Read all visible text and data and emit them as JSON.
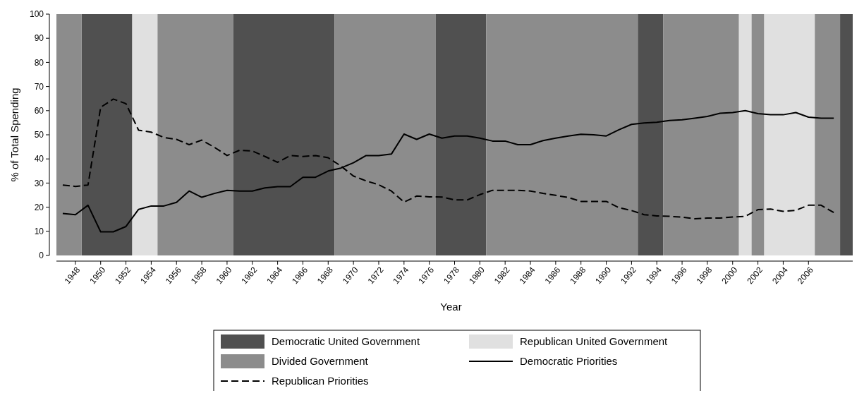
{
  "chart_data": {
    "type": "line",
    "xlabel": "Year",
    "ylabel": "% of Total Spending",
    "x": [
      1947,
      1948,
      1949,
      1950,
      1951,
      1952,
      1953,
      1954,
      1955,
      1956,
      1957,
      1958,
      1959,
      1960,
      1961,
      1962,
      1963,
      1964,
      1965,
      1966,
      1967,
      1968,
      1969,
      1970,
      1971,
      1972,
      1973,
      1974,
      1975,
      1976,
      1977,
      1978,
      1979,
      1980,
      1981,
      1982,
      1983,
      1984,
      1985,
      1986,
      1987,
      1988,
      1989,
      1990,
      1991,
      1992,
      1993,
      1994,
      1995,
      1996,
      1997,
      1998,
      1999,
      2000,
      2001,
      2002,
      2003,
      2004,
      2005,
      2006,
      2007,
      2008
    ],
    "series": [
      {
        "name": "Democratic Priorities",
        "color": "#000000",
        "line_style": "solid",
        "values": [
          17.4,
          16.9,
          20.8,
          9.8,
          9.8,
          12,
          19.1,
          20.5,
          20.5,
          22,
          26.7,
          24.1,
          25.7,
          27,
          26.7,
          26.7,
          28,
          28.5,
          28.5,
          32.4,
          32.4,
          35,
          36.2,
          38.4,
          41.4,
          41.4,
          42,
          50.3,
          48.1,
          50.3,
          48.6,
          49.5,
          49.5,
          48.6,
          47.4,
          47.4,
          45.9,
          45.9,
          47.6,
          48.6,
          49.5,
          50.2,
          50,
          49.5,
          52.1,
          54.3,
          54.9,
          55.2,
          55.9,
          56.2,
          56.9,
          57.6,
          58.9,
          59.2,
          60,
          58.8,
          58.3,
          58.3,
          59.2,
          57.3,
          56.9,
          56.9
        ]
      },
      {
        "name": "Republican Priorities",
        "color": "#000000",
        "line_style": "dashed",
        "values": [
          29.2,
          28.6,
          29.2,
          61.4,
          64.8,
          62.9,
          51.9,
          51.1,
          48.9,
          48.1,
          45.9,
          47.8,
          44.8,
          41.4,
          43.6,
          43.3,
          41,
          38.6,
          41.4,
          41,
          41.4,
          40.5,
          37.1,
          32.9,
          30.9,
          29.3,
          26.7,
          22.1,
          24.6,
          24.3,
          24.2,
          23,
          23,
          25.2,
          27,
          27,
          27,
          26.7,
          25.7,
          24.9,
          24,
          22.4,
          22.4,
          22.4,
          19.8,
          18.6,
          16.9,
          16.4,
          16.2,
          15.9,
          15.2,
          15.5,
          15.5,
          15.9,
          16.2,
          19,
          19.2,
          18.3,
          18.7,
          20.8,
          20.8,
          17.8
        ]
      }
    ],
    "bands": [
      {
        "axis": "x",
        "from": 1948.5,
        "to": 1952.5,
        "label": "Democratic United Government",
        "color": "#505050"
      },
      {
        "axis": "x",
        "from": 1952.5,
        "to": 1954.5,
        "label": "Republican United Government",
        "color": "#e0e0e0"
      },
      {
        "axis": "x",
        "from": 1946.5,
        "to": 1948.5,
        "label": "Divided Government",
        "color": "#8c8c8c"
      },
      {
        "axis": "x",
        "from": 1954.5,
        "to": 1960.5,
        "color": "#8c8c8c"
      },
      {
        "axis": "x",
        "from": 1960.5,
        "to": 1968.5,
        "color": "#505050"
      },
      {
        "axis": "x",
        "from": 1968.5,
        "to": 1976.5,
        "color": "#8c8c8c"
      },
      {
        "axis": "x",
        "from": 1976.5,
        "to": 1980.5,
        "color": "#505050"
      },
      {
        "axis": "x",
        "from": 1980.5,
        "to": 1992.5,
        "color": "#8c8c8c"
      },
      {
        "axis": "x",
        "from": 1992.5,
        "to": 1994.5,
        "color": "#505050"
      },
      {
        "axis": "x",
        "from": 1994.5,
        "to": 2000.5,
        "color": "#8c8c8c"
      },
      {
        "axis": "x",
        "from": 2000.5,
        "to": 2001.5,
        "color": "#e0e0e0"
      },
      {
        "axis": "x",
        "from": 2001.5,
        "to": 2002.5,
        "color": "#8c8c8c"
      },
      {
        "axis": "x",
        "from": 2002.5,
        "to": 2006.5,
        "color": "#e0e0e0"
      },
      {
        "axis": "x",
        "from": 2006.5,
        "to": 2008.5,
        "color": "#8c8c8c"
      },
      {
        "axis": "x",
        "from": 2008.5,
        "to": 2009.5,
        "color": "#505050"
      }
    ],
    "xlim": [
      1946.5,
      2009.5
    ],
    "xticks": [
      1948,
      1950,
      1952,
      1954,
      1956,
      1958,
      1960,
      1962,
      1964,
      1966,
      1968,
      1970,
      1972,
      1974,
      1976,
      1978,
      1980,
      1982,
      1984,
      1986,
      1988,
      1990,
      1992,
      1994,
      1996,
      1998,
      2000,
      2002,
      2004,
      2006
    ],
    "ylim": [
      0,
      100
    ],
    "yticks": [
      0,
      10,
      20,
      30,
      40,
      50,
      60,
      70,
      80,
      90,
      100
    ],
    "legend": "bottom"
  }
}
